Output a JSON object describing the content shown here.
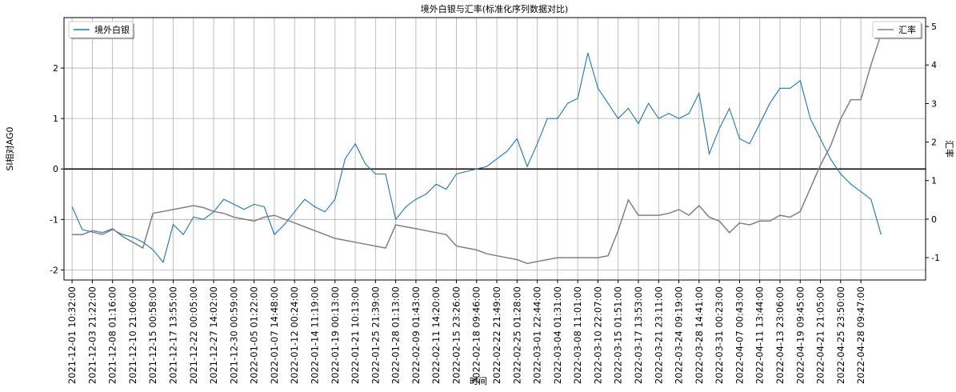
{
  "chart_data": {
    "type": "line",
    "title": "境外白银与汇率(标准化序列数据对比)",
    "xlabel": "时间",
    "ylabel": "SI相对AG0",
    "y2label": "汇率",
    "x": [
      0,
      0.5,
      1,
      1.5,
      2,
      2.5,
      3,
      3.5,
      4,
      4.5,
      5,
      5.5,
      6,
      6.5,
      7,
      7.5,
      8,
      8.5,
      9,
      9.5,
      10,
      10.5,
      11,
      11.5,
      12,
      12.5,
      13,
      13.5,
      14,
      14.5,
      15,
      15.5,
      16,
      16.5,
      17,
      17.5,
      18,
      18.5,
      19,
      19.5,
      20,
      20.5,
      21,
      21.5,
      22,
      22.5,
      23,
      23.5,
      24,
      24.5,
      25,
      25.5,
      26,
      26.5,
      27,
      27.5,
      28,
      28.5,
      29,
      29.5,
      30,
      30.5,
      31,
      31.5,
      32,
      32.5,
      33,
      33.5,
      34,
      34.5,
      35,
      35.5,
      36,
      36.5,
      37,
      37.5,
      38,
      38.5,
      39,
      39.5,
      40
    ],
    "series": [
      {
        "name": "境外白银",
        "color": "#1f77b4",
        "values": [
          -0.75,
          -1.2,
          -1.25,
          -1.3,
          -1.2,
          -1.3,
          -1.35,
          -1.45,
          -1.6,
          -1.85,
          -1.1,
          -1.3,
          -0.95,
          -1.0,
          -0.85,
          -0.6,
          -0.7,
          -0.8,
          -0.7,
          -0.75,
          -1.3,
          -1.1,
          -0.85,
          -0.6,
          -0.75,
          -0.85,
          -0.6,
          0.2,
          0.5,
          0.1,
          -0.1,
          -0.1,
          -1.0,
          -0.75,
          -0.6,
          -0.5,
          -0.3,
          -0.4,
          -0.1,
          -0.05,
          0.0,
          0.05,
          0.2,
          0.35,
          0.6,
          0.05,
          0.5,
          1.0,
          1.0,
          1.3,
          1.4,
          2.3,
          1.6,
          1.3,
          1.0,
          1.2,
          0.9,
          1.3,
          1.0,
          1.1,
          1.0,
          1.1,
          1.5,
          0.3,
          0.8,
          1.2,
          0.6,
          0.5,
          0.9,
          1.3,
          1.6,
          1.6,
          1.75,
          1.0,
          0.6,
          0.2,
          -0.1,
          -0.3,
          -0.45,
          -0.6,
          -1.3
        ]
      },
      {
        "name": "汇率",
        "color": "#808080",
        "axis": "y2",
        "values": [
          -0.4,
          -0.4,
          -0.3,
          -0.35,
          -0.25,
          -0.45,
          -0.6,
          -0.75,
          0.15,
          0.2,
          0.25,
          0.3,
          0.35,
          0.3,
          0.2,
          0.15,
          0.05,
          0.0,
          -0.05,
          0.05,
          0.1,
          0.0,
          -0.1,
          -0.2,
          -0.3,
          -0.4,
          -0.5,
          -0.55,
          -0.6,
          -0.65,
          -0.7,
          -0.75,
          -0.15,
          -0.2,
          -0.25,
          -0.3,
          -0.35,
          -0.4,
          -0.7,
          -0.75,
          -0.8,
          -0.9,
          -0.95,
          -1.0,
          -1.05,
          -1.15,
          -1.1,
          -1.05,
          -1.0,
          -1.0,
          -1.0,
          -1.0,
          -1.0,
          -0.95,
          -0.3,
          0.5,
          0.1,
          0.1,
          0.1,
          0.15,
          0.25,
          0.1,
          0.35,
          0.05,
          -0.05,
          -0.35,
          -0.1,
          -0.15,
          -0.05,
          -0.05,
          0.1,
          0.05,
          0.2,
          0.8,
          1.4,
          1.9,
          2.6,
          3.1,
          3.1,
          4.0,
          4.8
        ]
      }
    ],
    "hline": 0,
    "xlim": [
      -0.4,
      42.2
    ],
    "xticks": [
      {
        "value": 0,
        "label": "2021-12-01 10:32:00"
      },
      {
        "value": 1,
        "label": "2021-12-03 21:22:00"
      },
      {
        "value": 2,
        "label": "2021-12-08 01:16:00"
      },
      {
        "value": 3,
        "label": "2021-12-10 21:06:00"
      },
      {
        "value": 4,
        "label": "2021-12-15 00:58:00"
      },
      {
        "value": 5,
        "label": "2021-12-17 13:55:00"
      },
      {
        "value": 6,
        "label": "2021-12-22 00:05:00"
      },
      {
        "value": 7,
        "label": "2021-12-27 14:02:00"
      },
      {
        "value": 8,
        "label": "2021-12-30 00:59:00"
      },
      {
        "value": 9,
        "label": "2022-01-05 01:22:00"
      },
      {
        "value": 10,
        "label": "2022-01-07 14:48:00"
      },
      {
        "value": 11,
        "label": "2022-01-12 00:24:00"
      },
      {
        "value": 12,
        "label": "2022-01-14 11:19:00"
      },
      {
        "value": 13,
        "label": "2022-01-19 00:13:00"
      },
      {
        "value": 14,
        "label": "2022-01-21 10:13:00"
      },
      {
        "value": 15,
        "label": "2022-01-25 21:39:00"
      },
      {
        "value": 16,
        "label": "2022-01-28 01:13:00"
      },
      {
        "value": 17,
        "label": "2022-02-09 01:43:00"
      },
      {
        "value": 18,
        "label": "2022-02-11 14:20:00"
      },
      {
        "value": 19,
        "label": "2022-02-15 23:26:00"
      },
      {
        "value": 20,
        "label": "2022-02-18 09:46:00"
      },
      {
        "value": 21,
        "label": "2022-02-22 21:49:00"
      },
      {
        "value": 22,
        "label": "2022-02-25 01:28:00"
      },
      {
        "value": 23,
        "label": "2022-03-01 22:44:00"
      },
      {
        "value": 24,
        "label": "2022-03-04 01:31:00"
      },
      {
        "value": 25,
        "label": "2022-03-08 11:01:00"
      },
      {
        "value": 26,
        "label": "2022-03-10 22:07:00"
      },
      {
        "value": 27,
        "label": "2022-03-15 01:51:00"
      },
      {
        "value": 28,
        "label": "2022-03-17 13:53:00"
      },
      {
        "value": 29,
        "label": "2022-03-21 23:11:00"
      },
      {
        "value": 30,
        "label": "2022-03-24 09:19:00"
      },
      {
        "value": 31,
        "label": "2022-03-28 14:41:00"
      },
      {
        "value": 32,
        "label": "2022-03-31 00:23:00"
      },
      {
        "value": 33,
        "label": "2022-04-07 00:43:00"
      },
      {
        "value": 34,
        "label": "2022-04-11 13:44:00"
      },
      {
        "value": 35,
        "label": "2022-04-13 23:06:00"
      },
      {
        "value": 36,
        "label": "2022-04-19 09:45:00"
      },
      {
        "value": 37,
        "label": "2022-04-21 21:05:00"
      },
      {
        "value": 38,
        "label": "2022-04-25 23:50:00"
      },
      {
        "value": 39,
        "label": "2022-04-28 09:47:00"
      }
    ],
    "ylim": [
      -2.2,
      3.0
    ],
    "yticks": [
      -2,
      -1,
      0,
      1,
      2
    ],
    "y2lim": [
      -1.58,
      5.23
    ],
    "y2ticks": [
      -1,
      0,
      1,
      2,
      3,
      4,
      5
    ],
    "grid": true,
    "legend": "upper left",
    "legend2": "upper right"
  }
}
